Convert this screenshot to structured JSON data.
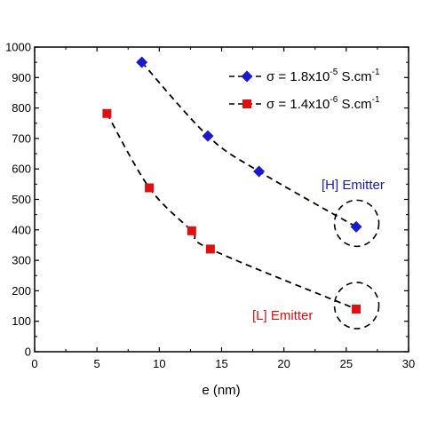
{
  "chart_data": {
    "type": "scatter",
    "title": "",
    "xlabel": "e (nm)",
    "ylabel": "",
    "xlim": [
      0,
      30
    ],
    "ylim": [
      0,
      1000
    ],
    "x_ticks": [
      "0",
      "5",
      "10",
      "15",
      "20",
      "25",
      "30"
    ],
    "y_ticks": [
      "0",
      "100",
      "200",
      "300",
      "400",
      "500",
      "600",
      "700",
      "800",
      "900",
      "1000"
    ],
    "grid": false,
    "legend_position": "top-right",
    "series": [
      {
        "legend": {
          "prefix": "σ = 1.8x10",
          "exponent": "-5",
          "unit": " S.cm",
          "unit_exponent": "-1"
        },
        "marker": "diamond",
        "color": "#1a1acc",
        "line": "dashed",
        "x": [
          8.6,
          13.9,
          18.0,
          25.8
        ],
        "y": [
          950,
          708,
          592,
          410
        ]
      },
      {
        "legend": {
          "prefix": "σ = 1.4x10",
          "exponent": "-6",
          "unit": " S.cm",
          "unit_exponent": "-1"
        },
        "marker": "square",
        "color": "#e01010",
        "line": "dashed",
        "x": [
          5.8,
          9.2,
          12.6,
          14.1,
          25.8
        ],
        "y": [
          782,
          538,
          397,
          337,
          140
        ]
      }
    ],
    "annotations": [
      {
        "text": "[H] Emitter",
        "color": "#1a1acc"
      },
      {
        "text": "[L] Emitter",
        "color": "#e01010"
      }
    ]
  }
}
